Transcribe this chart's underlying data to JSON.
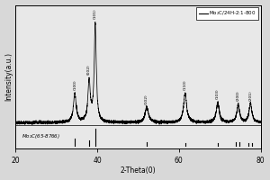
{
  "xlabel": "2-Theta(0)",
  "ylabel": "Intensity(a.u.)",
  "xlim": [
    20,
    80
  ],
  "legend_label": "Mo₂C/24H-2:1-800",
  "ref_label": "Mo₂C(65-8766)",
  "peak_labels": [
    "(100)",
    "(002)",
    "(101)",
    "(102)",
    "(110)",
    "(103)",
    "(200)",
    "(201)"
  ],
  "peak_positions": [
    34.5,
    38.0,
    39.5,
    52.1,
    61.5,
    69.5,
    74.5,
    77.5
  ],
  "peak_heights": [
    0.3,
    0.42,
    1.0,
    0.16,
    0.3,
    0.2,
    0.18,
    0.2
  ],
  "peak_widths": [
    0.4,
    0.35,
    0.3,
    0.5,
    0.45,
    0.45,
    0.4,
    0.4
  ],
  "ref_stick_positions": [
    34.5,
    38.0,
    39.5,
    52.1,
    61.5,
    69.5,
    74.0,
    74.8,
    77.0,
    77.8
  ],
  "ref_stick_heights": [
    0.4,
    0.28,
    1.0,
    0.18,
    0.15,
    0.12,
    0.18,
    0.18,
    0.15,
    0.15
  ],
  "background_color": "#d8d8d8",
  "plot_bg_color": "#e8e8e8",
  "line_color": "#000000",
  "xticks": [
    20,
    40,
    60,
    80
  ]
}
